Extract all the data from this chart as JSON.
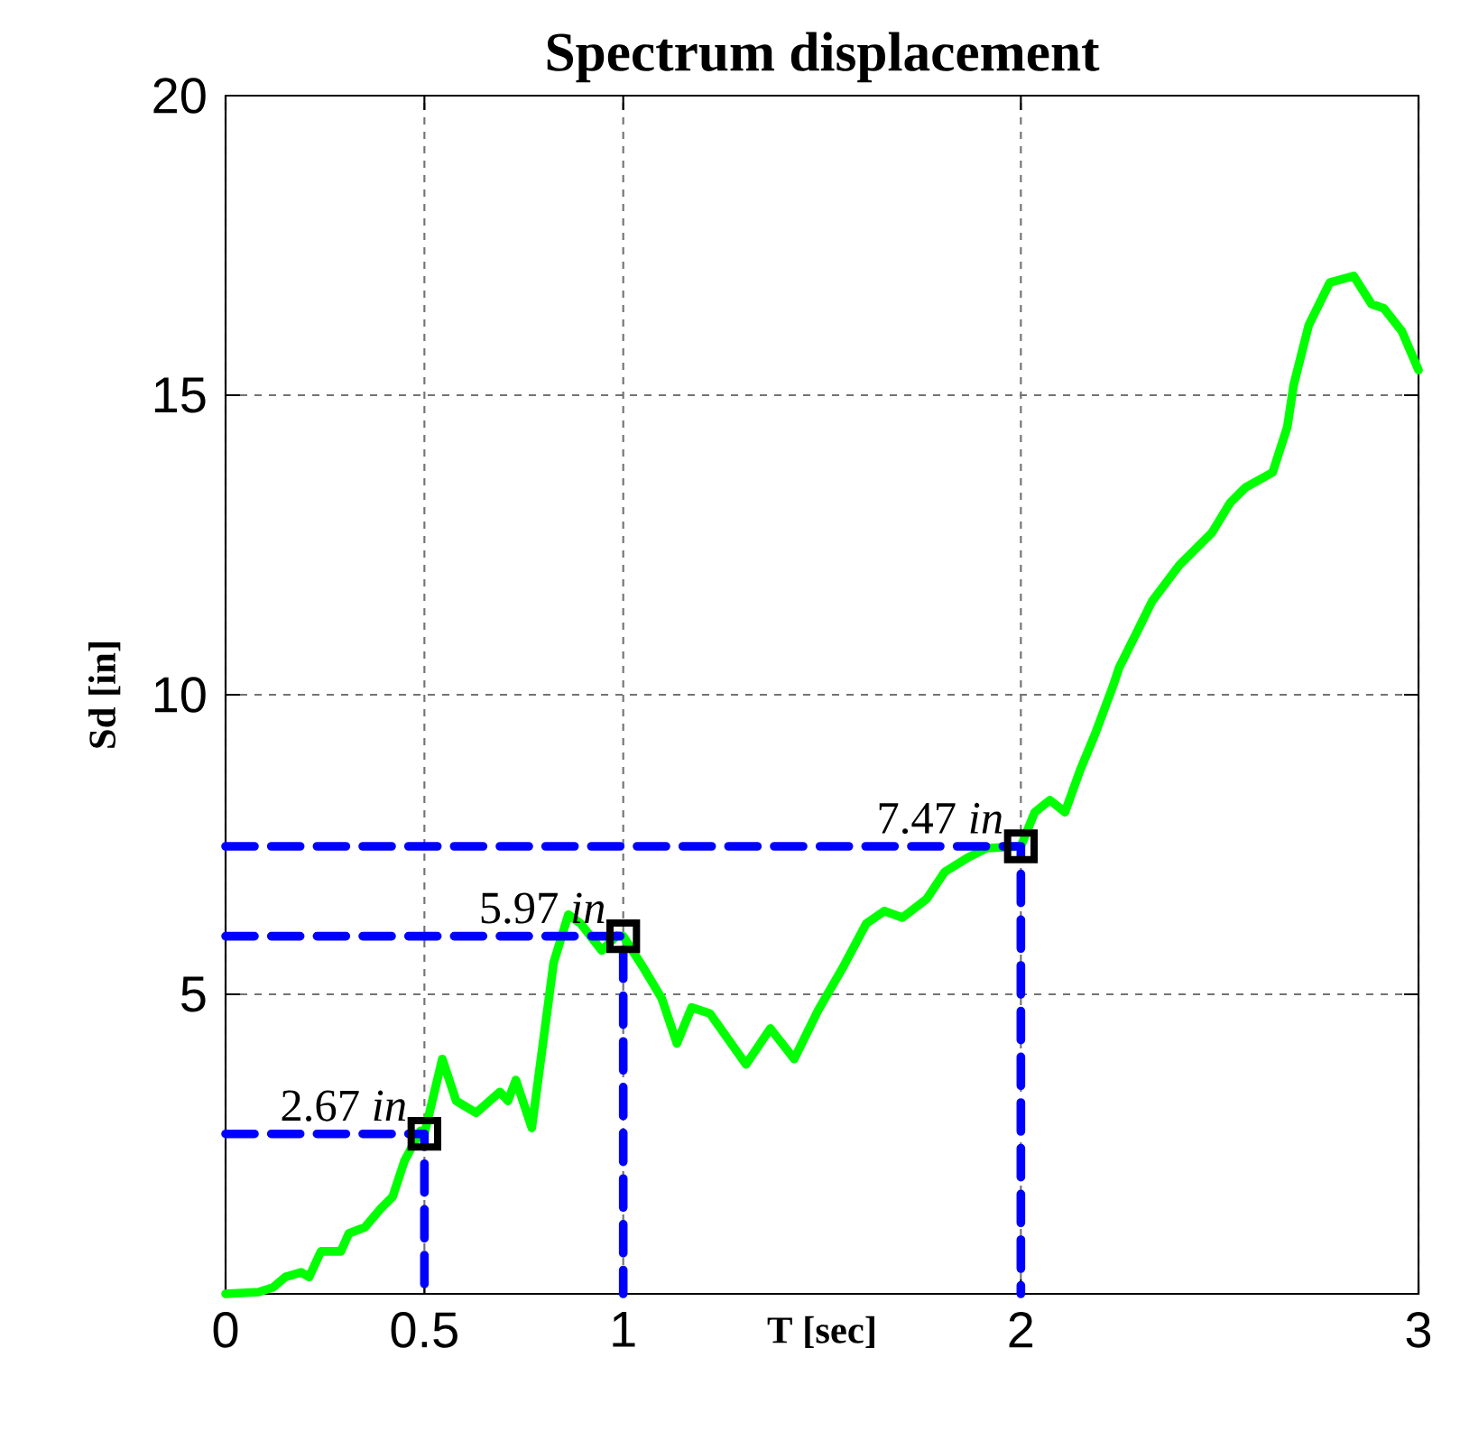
{
  "chart_data": {
    "type": "line",
    "title": "Spectrum displacement",
    "xlabel": "T [sec]",
    "ylabel": "Sd [in]",
    "xlim": [
      0,
      3
    ],
    "ylim": [
      0,
      20
    ],
    "xticks": [
      0,
      0.5,
      1,
      2,
      3
    ],
    "yticks": [
      5,
      10,
      15,
      20
    ],
    "grid": true,
    "legend": false,
    "series": [
      {
        "color": "#00ff00",
        "line_style": "solid",
        "marker": "none",
        "x": [
          0,
          0.083,
          0.12,
          0.15,
          0.19,
          0.21,
          0.24,
          0.29,
          0.31,
          0.35,
          0.39,
          0.42,
          0.45,
          0.49,
          0.5,
          0.545,
          0.58,
          0.63,
          0.69,
          0.71,
          0.73,
          0.77,
          0.825,
          0.862,
          0.893,
          0.946,
          0.984,
          1.0,
          1.052,
          1.097,
          1.135,
          1.172,
          1.218,
          1.309,
          1.37,
          1.43,
          1.49,
          1.551,
          1.611,
          1.657,
          1.702,
          1.763,
          1.808,
          1.869,
          1.914,
          2.0,
          2.035,
          2.073,
          2.111,
          2.149,
          2.187,
          2.232,
          2.247,
          2.292,
          2.33,
          2.398,
          2.481,
          2.527,
          2.565,
          2.633,
          2.67,
          2.686,
          2.724,
          2.777,
          2.837,
          2.882,
          2.913,
          2.958,
          3.0
        ],
        "values": [
          0,
          0.03,
          0.11,
          0.28,
          0.36,
          0.28,
          0.71,
          0.71,
          1.01,
          1.11,
          1.42,
          1.62,
          2.22,
          2.72,
          2.67,
          3.92,
          3.22,
          3.02,
          3.37,
          3.22,
          3.57,
          2.77,
          5.53,
          6.33,
          6.18,
          5.73,
          5.98,
          5.97,
          5.43,
          4.93,
          4.18,
          4.78,
          4.68,
          3.83,
          4.43,
          3.92,
          4.73,
          5.43,
          6.18,
          6.39,
          6.28,
          6.59,
          7.04,
          7.29,
          7.44,
          7.47,
          8.04,
          8.24,
          8.04,
          8.74,
          9.35,
          10.15,
          10.45,
          11.05,
          11.56,
          12.16,
          12.71,
          13.21,
          13.46,
          13.71,
          14.47,
          15.17,
          16.17,
          16.88,
          16.99,
          16.52,
          16.45,
          16.07,
          15.42
        ]
      },
      {
        "color": "#0000ff",
        "line_style": "dashed",
        "marker": "none",
        "x": [
          0,
          0.5,
          0.5
        ],
        "values": [
          2.67,
          2.67,
          0
        ]
      },
      {
        "color": "#0000ff",
        "line_style": "dashed",
        "marker": "none",
        "x": [
          0,
          1,
          1
        ],
        "values": [
          5.97,
          5.97,
          0
        ]
      },
      {
        "color": "#0000ff",
        "line_style": "dashed",
        "marker": "none",
        "x": [
          0,
          2,
          2
        ],
        "values": [
          7.47,
          7.47,
          0
        ]
      },
      {
        "type": "scatter",
        "color": "#000000",
        "marker": "square",
        "x": [
          0.5,
          1,
          2
        ],
        "values": [
          2.67,
          5.97,
          7.47
        ]
      }
    ],
    "annotations": [
      {
        "text": "2.67 *in*",
        "x": 0.5,
        "y": 2.67
      },
      {
        "text": "5.97 *in*",
        "x": 1,
        "y": 5.97
      },
      {
        "text": "7.47 *in*",
        "x": 2,
        "y": 7.47
      }
    ]
  }
}
